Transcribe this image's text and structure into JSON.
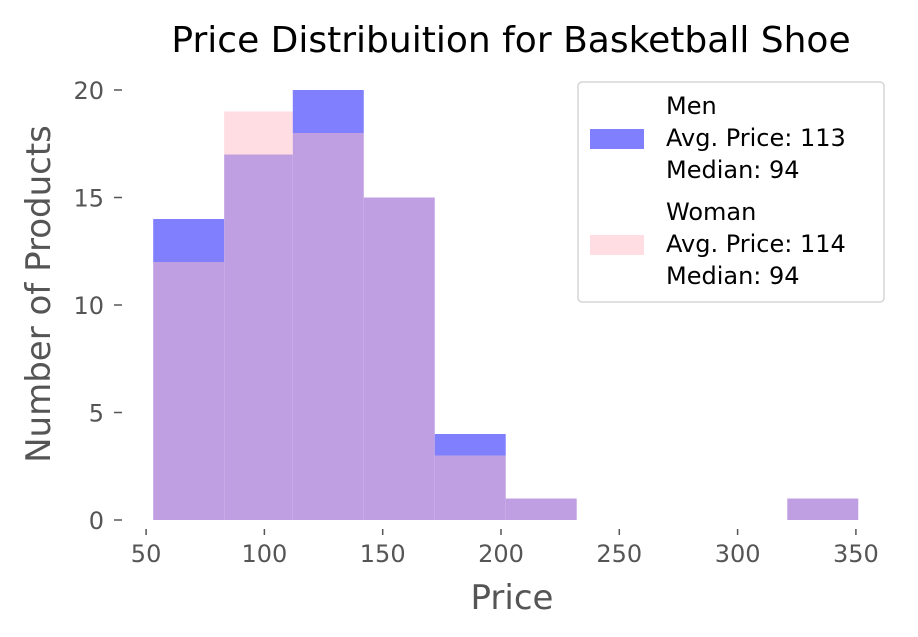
{
  "chart_data": {
    "type": "bar",
    "title": "Price Distribuition for Basketball Shoe",
    "xlabel": "Price",
    "ylabel": "Number of Products",
    "xlim": [
      52.5,
      353
    ],
    "ylim": [
      0,
      20
    ],
    "xticks": [
      "50",
      "100",
      "150",
      "200",
      "250",
      "300",
      "350"
    ],
    "yticks": [
      "0",
      "5",
      "10",
      "15",
      "20"
    ],
    "bin_edges": [
      53,
      83,
      112,
      142,
      172,
      202,
      232,
      262,
      291,
      321,
      351
    ],
    "grid": false,
    "legend_position": "top-right",
    "series": [
      {
        "name": "Men",
        "color": "#8080ff",
        "values": [
          14,
          17,
          20,
          15,
          4,
          1,
          0,
          0,
          0,
          1
        ],
        "legend_lines": [
          "Men",
          "Avg. Price: 113",
          "Median: 94"
        ]
      },
      {
        "name": "Woman",
        "color": "#ffdde2",
        "values": [
          12,
          19,
          18,
          15,
          3,
          1,
          0,
          0,
          0,
          1
        ],
        "legend_lines": [
          "Woman",
          "Avg. Price: 114",
          "Median: 94"
        ]
      }
    ],
    "overlap_color": "#bf9fe2"
  }
}
